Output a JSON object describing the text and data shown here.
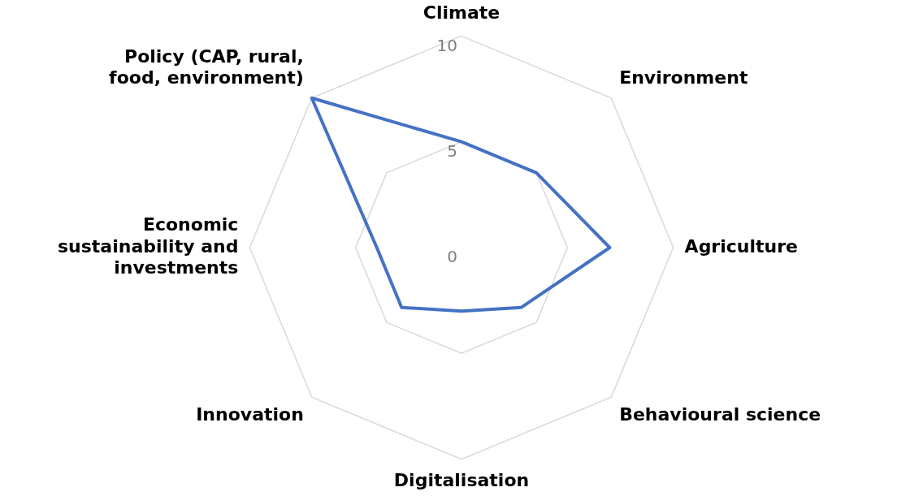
{
  "chart_data": {
    "type": "radar",
    "categories": [
      "Climate",
      "Environment",
      "Agriculture",
      "Behavioural science",
      "Digitalisation",
      "Innovation",
      "Economic sustainability and investments",
      "Policy (CAP, rural, food, environment)"
    ],
    "series": [
      {
        "color": "#4472c4",
        "values": [
          5,
          5,
          7,
          4,
          3,
          4,
          4,
          10
        ]
      }
    ],
    "ylim": [
      0,
      10
    ],
    "yticks": [
      0,
      5,
      10
    ],
    "grid": true,
    "legend": false,
    "marker": "none"
  }
}
